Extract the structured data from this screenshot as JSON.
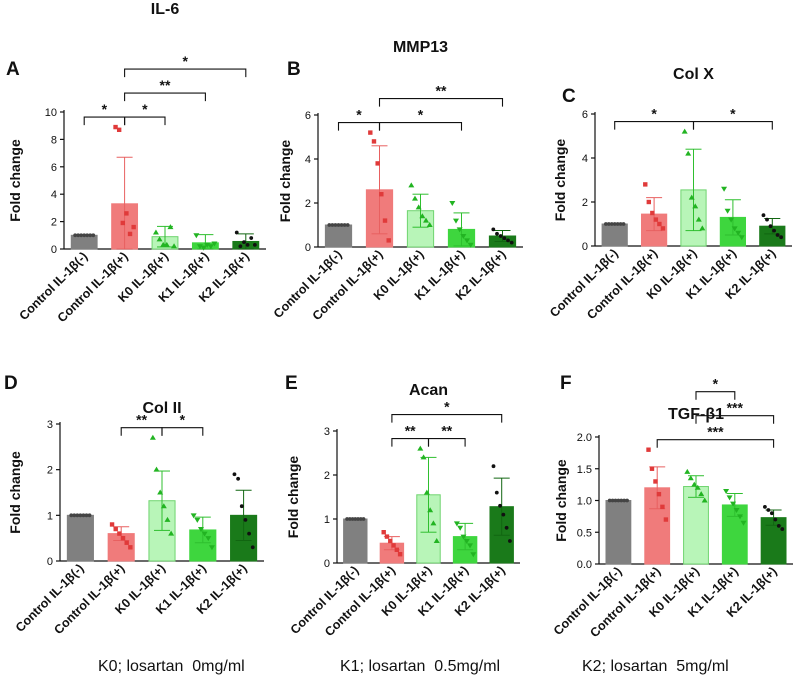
{
  "chart_data": [
    {
      "type": "bar",
      "panel": "A",
      "title": "IL-6",
      "ylabel": "Fold change",
      "ylim": [
        0,
        10
      ],
      "yticks": [
        0,
        2,
        4,
        6,
        8,
        10
      ],
      "categories": [
        "Control IL-1β(-)",
        "Control IL-1β(+)",
        "K0 IL-1β(+)",
        "K1 IL-1β(+)",
        "K2 IL-1β(+)"
      ],
      "values": [
        1.0,
        3.3,
        0.9,
        0.45,
        0.55
      ],
      "errors": [
        0.0,
        3.4,
        0.75,
        0.6,
        0.55
      ],
      "points": [
        [
          1,
          1,
          1,
          1,
          1,
          1,
          1
        ],
        [
          8.9,
          8.7,
          1.9,
          2.6,
          1.1,
          1.6
        ],
        [
          1.2,
          0.7,
          0.3,
          0.3,
          1.6,
          0.2
        ],
        [
          1.0,
          0.2,
          0.1,
          0.3,
          0.2,
          0.4
        ],
        [
          1.2,
          0.2,
          0.5,
          0.3,
          0.8,
          0.3
        ]
      ],
      "significance": [
        {
          "from": 0,
          "to": 1,
          "label": "*"
        },
        {
          "from": 1,
          "to": 2,
          "label": "*"
        },
        {
          "from": 1,
          "to": 3,
          "label": "**"
        },
        {
          "from": 1,
          "to": 4,
          "label": "*"
        }
      ],
      "colors": [
        "#808080",
        "#f07b7b",
        "#b8f5b8",
        "#3ed63e",
        "#1a7a1a"
      ]
    },
    {
      "type": "bar",
      "panel": "B",
      "title": "MMP13",
      "ylabel": "Fold change",
      "ylim": [
        0,
        6
      ],
      "yticks": [
        0,
        2,
        4,
        6
      ],
      "categories": [
        "Control IL-1β(-)",
        "Control IL-1β(+)",
        "K0 IL-1β(+)",
        "K1 IL-1β(+)",
        "K2 IL-1β(+)"
      ],
      "values": [
        1.0,
        2.6,
        1.65,
        0.8,
        0.5
      ],
      "errors": [
        0.0,
        2.0,
        0.75,
        0.75,
        0.25
      ],
      "points": [
        [
          1,
          1,
          1,
          1,
          1,
          1,
          1
        ],
        [
          5.2,
          4.8,
          3.8,
          2.4,
          1.2,
          0.3
        ],
        [
          2.8,
          2.2,
          1.8,
          1.4,
          1.2,
          1.0
        ],
        [
          2.0,
          1.2,
          0.8,
          0.5,
          0.3,
          0.1
        ],
        [
          0.8,
          0.6,
          0.5,
          0.4,
          0.3,
          0.2
        ]
      ],
      "significance": [
        {
          "from": 0,
          "to": 1,
          "label": "*"
        },
        {
          "from": 1,
          "to": 3,
          "label": "*"
        },
        {
          "from": 1,
          "to": 4,
          "label": "**"
        }
      ],
      "colors": [
        "#808080",
        "#f07b7b",
        "#b8f5b8",
        "#3ed63e",
        "#1a7a1a"
      ]
    },
    {
      "type": "bar",
      "panel": "C",
      "title": "Col X",
      "ylabel": "Fold change",
      "ylim": [
        0,
        6
      ],
      "yticks": [
        0,
        2,
        4,
        6
      ],
      "categories": [
        "Control IL-1β(-)",
        "Control IL-1β(+)",
        "K0 IL-1β(+)",
        "K1 IL-1β(+)",
        "K2 IL-1β(+)"
      ],
      "values": [
        1.0,
        1.45,
        2.55,
        1.3,
        0.9
      ],
      "errors": [
        0.0,
        0.75,
        1.85,
        0.8,
        0.35
      ],
      "points": [
        [
          1,
          1,
          1,
          1,
          1,
          1,
          1
        ],
        [
          2.8,
          2.0,
          1.5,
          1.2,
          1.0,
          0.8
        ],
        [
          5.2,
          4.2,
          2.2,
          1.8,
          1.2,
          0.8
        ],
        [
          2.6,
          1.6,
          1.2,
          0.8,
          0.6,
          0.4
        ],
        [
          1.4,
          1.2,
          0.9,
          0.7,
          0.5,
          0.4
        ]
      ],
      "significance": [
        {
          "from": 0,
          "to": 2,
          "label": "*"
        },
        {
          "from": 2,
          "to": 4,
          "label": "*"
        }
      ],
      "colors": [
        "#808080",
        "#f07b7b",
        "#b8f5b8",
        "#3ed63e",
        "#1a7a1a"
      ]
    },
    {
      "type": "bar",
      "panel": "D",
      "title": "Col II",
      "ylabel": "Fold change",
      "ylim": [
        0,
        3
      ],
      "yticks": [
        0,
        1,
        2,
        3
      ],
      "categories": [
        "Control IL-1β(-)",
        "Control IL-1β(+)",
        "K0 IL-1β(+)",
        "K1 IL-1β(+)",
        "K2 IL-1β(+)"
      ],
      "values": [
        1.0,
        0.6,
        1.32,
        0.68,
        1.0
      ],
      "errors": [
        0.0,
        0.15,
        0.65,
        0.28,
        0.55
      ],
      "points": [
        [
          1,
          1,
          1,
          1,
          1,
          1,
          1
        ],
        [
          0.8,
          0.7,
          0.6,
          0.5,
          0.4,
          0.3
        ],
        [
          2.7,
          2.0,
          1.5,
          1.2,
          0.9,
          0.6
        ],
        [
          1.0,
          0.9,
          0.7,
          0.6,
          0.5,
          0.3
        ],
        [
          1.9,
          1.8,
          1.2,
          0.9,
          0.6,
          0.3
        ]
      ],
      "significance": [
        {
          "from": 1,
          "to": 2,
          "label": "**"
        },
        {
          "from": 2,
          "to": 3,
          "label": "*"
        }
      ],
      "colors": [
        "#808080",
        "#f07b7b",
        "#b8f5b8",
        "#3ed63e",
        "#1a7a1a"
      ]
    },
    {
      "type": "bar",
      "panel": "E",
      "title": "Acan",
      "ylabel": "Fold change",
      "ylim": [
        0,
        3
      ],
      "yticks": [
        0,
        1,
        2,
        3
      ],
      "categories": [
        "Control IL-1β(-)",
        "Control IL-1β(+)",
        "K0 IL-1β(+)",
        "K1 IL-1β(+)",
        "K2 IL-1β(+)"
      ],
      "values": [
        1.0,
        0.45,
        1.55,
        0.6,
        1.28
      ],
      "errors": [
        0.0,
        0.15,
        0.85,
        0.3,
        0.65
      ],
      "points": [
        [
          1,
          1,
          1,
          1,
          1,
          1,
          1
        ],
        [
          0.7,
          0.6,
          0.5,
          0.4,
          0.3,
          0.2
        ],
        [
          2.6,
          2.4,
          1.6,
          1.2,
          0.9,
          0.5
        ],
        [
          0.9,
          0.8,
          0.6,
          0.5,
          0.4,
          0.2
        ],
        [
          2.2,
          1.6,
          1.3,
          1.1,
          0.8,
          0.5
        ]
      ],
      "significance": [
        {
          "from": 1,
          "to": 2,
          "label": "**"
        },
        {
          "from": 2,
          "to": 3,
          "label": "**"
        },
        {
          "from": 1,
          "to": 4,
          "label": "*"
        }
      ],
      "colors": [
        "#808080",
        "#f07b7b",
        "#b8f5b8",
        "#3ed63e",
        "#1a7a1a"
      ]
    },
    {
      "type": "bar",
      "panel": "F",
      "title": "TGF-β1",
      "ylabel": "Fold change",
      "ylim": [
        0,
        2.0
      ],
      "yticks": [
        0.0,
        0.5,
        1.0,
        1.5,
        2.0
      ],
      "categories": [
        "Control IL-1β(-)",
        "Control IL-1β(+)",
        "K0 IL-1β(+)",
        "K1 IL-1β(+)",
        "K2 IL-1β(+)"
      ],
      "values": [
        1.0,
        1.2,
        1.22,
        0.93,
        0.73
      ],
      "errors": [
        0.0,
        0.33,
        0.17,
        0.18,
        0.12
      ],
      "points": [
        [
          1,
          1,
          1,
          1,
          1,
          1,
          1
        ],
        [
          1.8,
          1.5,
          1.3,
          1.1,
          0.9,
          0.7
        ],
        [
          1.45,
          1.35,
          1.25,
          1.2,
          1.1,
          1.0
        ],
        [
          1.15,
          1.05,
          0.95,
          0.85,
          0.75,
          0.65
        ],
        [
          0.9,
          0.85,
          0.8,
          0.7,
          0.6,
          0.55
        ]
      ],
      "significance": [
        {
          "from": 1,
          "to": 4,
          "label": "***"
        },
        {
          "from": 2,
          "to": 4,
          "label": "***"
        },
        {
          "from": 2,
          "to": 3,
          "label": "*"
        }
      ],
      "colors": [
        "#808080",
        "#f07b7b",
        "#b8f5b8",
        "#3ed63e",
        "#1a7a1a"
      ]
    }
  ],
  "footer": [
    "K0; losartan  0mg/ml",
    "K1; losartan  0.5mg/ml",
    "K2; losartan  5mg/ml"
  ]
}
